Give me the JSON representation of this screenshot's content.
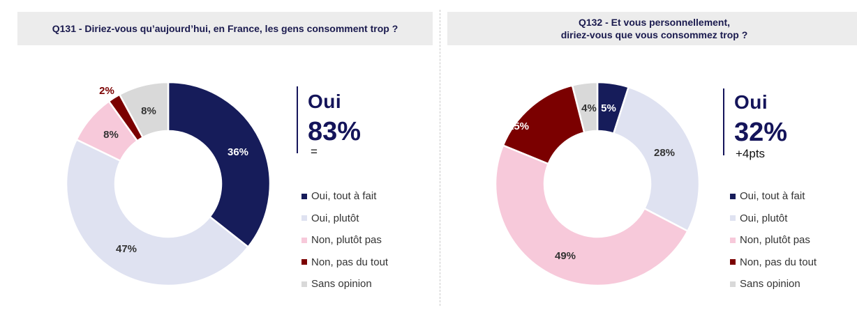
{
  "chart_data": [
    {
      "type": "pie",
      "title": "Q131 - Diriez-vous qu’aujourd’hui, en France, les gens consomment trop ?",
      "categories": [
        "Oui, tout à fait",
        "Oui, plutôt",
        "Non, plutôt pas",
        "Non, pas du tout",
        "Sans opinion"
      ],
      "values": [
        36,
        47,
        8,
        2,
        8
      ],
      "labels": [
        "36%",
        "47%",
        "8%",
        "2%",
        "8%"
      ],
      "colors": [
        "#161c5a",
        "#dfe2f1",
        "#f7c9da",
        "#7b0000",
        "#d9d9d9"
      ],
      "label_colors": [
        "#ffffff",
        "#333333",
        "#333333",
        "#7b0000",
        "#333333"
      ],
      "summary": {
        "label": "Oui",
        "value": "83%",
        "delta": "="
      },
      "legend_position": "right"
    },
    {
      "type": "pie",
      "title_lines": [
        "Q132 - Et vous personnellement,",
        "diriez-vous que vous consommez trop ?"
      ],
      "categories": [
        "Oui, tout à fait",
        "Oui, plutôt",
        "Non, plutôt pas",
        "Non, pas du tout",
        "Sans opinion"
      ],
      "values": [
        5,
        28,
        49,
        15,
        4
      ],
      "labels": [
        "5%",
        "28%",
        "49%",
        "15%",
        "4%"
      ],
      "colors": [
        "#161c5a",
        "#dfe2f1",
        "#f7c9da",
        "#7b0000",
        "#d9d9d9"
      ],
      "label_colors": [
        "#ffffff",
        "#333333",
        "#333333",
        "#ffffff",
        "#333333"
      ],
      "summary": {
        "label": "Oui",
        "value": "32%",
        "delta": "+4pts"
      },
      "legend_position": "right"
    }
  ]
}
